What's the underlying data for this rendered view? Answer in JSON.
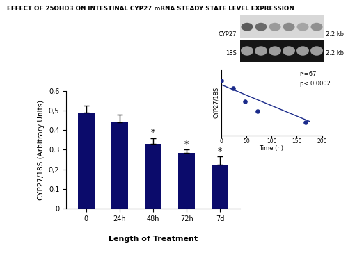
{
  "chart_data": [
    {
      "type": "bar",
      "title": "EFFECT OF 25OHD3 ON INTESTINAL CYP27 mRNA STEADY STATE LEVEL EXPRESSION",
      "categories": [
        "0",
        "24h",
        "48h",
        "72h",
        "7d"
      ],
      "values": [
        0.49,
        0.44,
        0.33,
        0.285,
        0.225
      ],
      "errors": [
        0.035,
        0.04,
        0.03,
        0.015,
        0.04
      ],
      "annotations": [
        {
          "category": "48h",
          "text": "*"
        },
        {
          "category": "72h",
          "text": "*"
        },
        {
          "category": "7d",
          "text": "*"
        }
      ],
      "color": "#0b0b6b",
      "x_label": "Length of Treatment",
      "y_label": "CYP27/18S (Arbitrary Units)",
      "ylim": [
        0,
        0.6
      ],
      "yticks": [
        0,
        {
          "value": 0.1,
          "label": "0,1"
        },
        {
          "value": 0.2,
          "label": "0,2"
        },
        {
          "value": 0.3,
          "label": "0,3"
        },
        {
          "value": 0.4,
          "label": "0,4"
        },
        {
          "value": 0.5,
          "label": "0,5"
        },
        {
          "value": 0.6,
          "label": "0,6"
        }
      ]
    },
    {
      "type": "scatter",
      "x_label": "Time (h)",
      "y_label": "CYP27/18S",
      "series": [
        {
          "type": "scatter",
          "x": [
            0,
            24,
            48,
            72,
            168
          ],
          "values": [
            0.49,
            0.45,
            0.38,
            0.33,
            0.27
          ],
          "color": "#1a2a8a",
          "marker": "circle"
        },
        {
          "type": "line",
          "x": [
            0,
            175
          ],
          "values": [
            0.47,
            0.275
          ],
          "color": "#1a2a8a",
          "line_style": "solid"
        }
      ],
      "annotations": [
        {
          "text": "r²=67"
        },
        {
          "text": "p< 0.0002"
        }
      ],
      "xlim": [
        0,
        200
      ],
      "xticks": [
        0,
        50,
        100,
        150,
        200
      ],
      "ylim": [
        0.2,
        0.55
      ],
      "tick_labels": "x"
    }
  ],
  "blot": {
    "rows": [
      {
        "label": "CYP27",
        "size": "2.2 kb"
      },
      {
        "label": "18S",
        "size": "2.2 kb"
      }
    ]
  }
}
